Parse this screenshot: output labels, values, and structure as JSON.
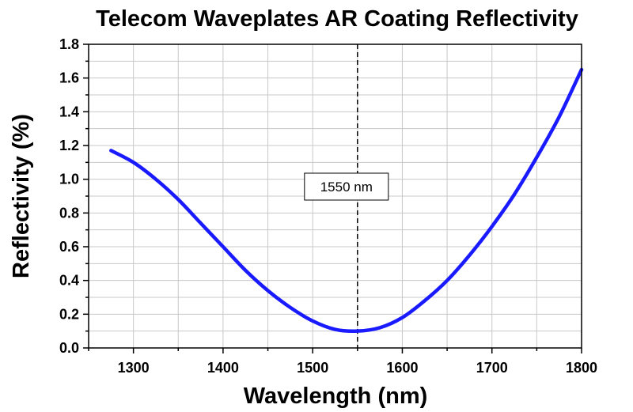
{
  "chart_data": {
    "type": "line",
    "title": "Telecom Waveplates AR Coating Reflectivity",
    "xlabel": "Wavelength (nm)",
    "ylabel": "Reflectivity (%)",
    "xlim": [
      1250,
      1800
    ],
    "ylim": [
      0.0,
      1.8
    ],
    "x_ticks": [
      1300,
      1400,
      1500,
      1600,
      1700,
      1800
    ],
    "y_ticks": [
      0.0,
      0.2,
      0.4,
      0.6,
      0.8,
      1.0,
      1.2,
      1.4,
      1.6,
      1.8
    ],
    "grid": true,
    "series": [
      {
        "color": "#1a1aff",
        "x": [
          1275,
          1300,
          1325,
          1350,
          1375,
          1400,
          1425,
          1450,
          1475,
          1500,
          1525,
          1550,
          1575,
          1600,
          1625,
          1650,
          1675,
          1700,
          1725,
          1750,
          1775,
          1800
        ],
        "y": [
          1.17,
          1.1,
          1.0,
          0.88,
          0.74,
          0.6,
          0.46,
          0.34,
          0.24,
          0.16,
          0.11,
          0.1,
          0.12,
          0.18,
          0.28,
          0.4,
          0.55,
          0.72,
          0.91,
          1.13,
          1.37,
          1.65
        ]
      }
    ],
    "annotations": [
      {
        "text": "1550 nm",
        "x": 1550,
        "line_style": "dashed"
      }
    ]
  }
}
